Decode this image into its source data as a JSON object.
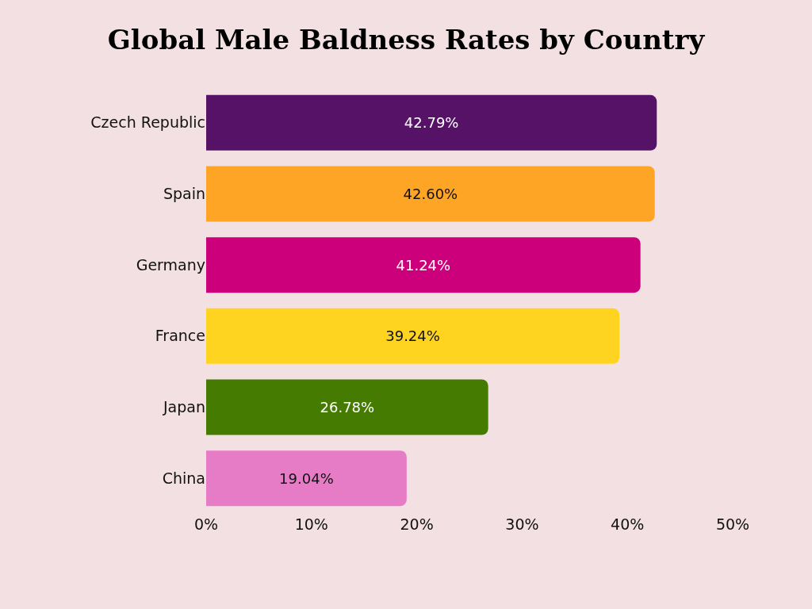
{
  "chart_data": {
    "type": "bar",
    "orientation": "horizontal",
    "title": "Global Male Baldness Rates by Country",
    "categories": [
      "Czech Republic",
      "Spain",
      "Germany",
      "France",
      "Japan",
      "China"
    ],
    "values": [
      42.79,
      42.6,
      41.24,
      39.24,
      26.78,
      19.04
    ],
    "value_labels": [
      "42.79%",
      "42.60%",
      "41.24%",
      "39.24%",
      "26.78%",
      "19.04%"
    ],
    "colors": [
      "#561266",
      "#ffa526",
      "#cc007a",
      "#ffd420",
      "#457b00",
      "#e77cc6"
    ],
    "xlim": [
      0,
      50
    ],
    "xticks": [
      {
        "value": 0,
        "label": "0%"
      },
      {
        "value": 10,
        "label": "10%"
      },
      {
        "value": 20,
        "label": "20%"
      },
      {
        "value": 30,
        "label": "30%"
      },
      {
        "value": 40,
        "label": "40%"
      },
      {
        "value": 50,
        "label": "50%"
      }
    ],
    "grid": false,
    "legend": false
  }
}
